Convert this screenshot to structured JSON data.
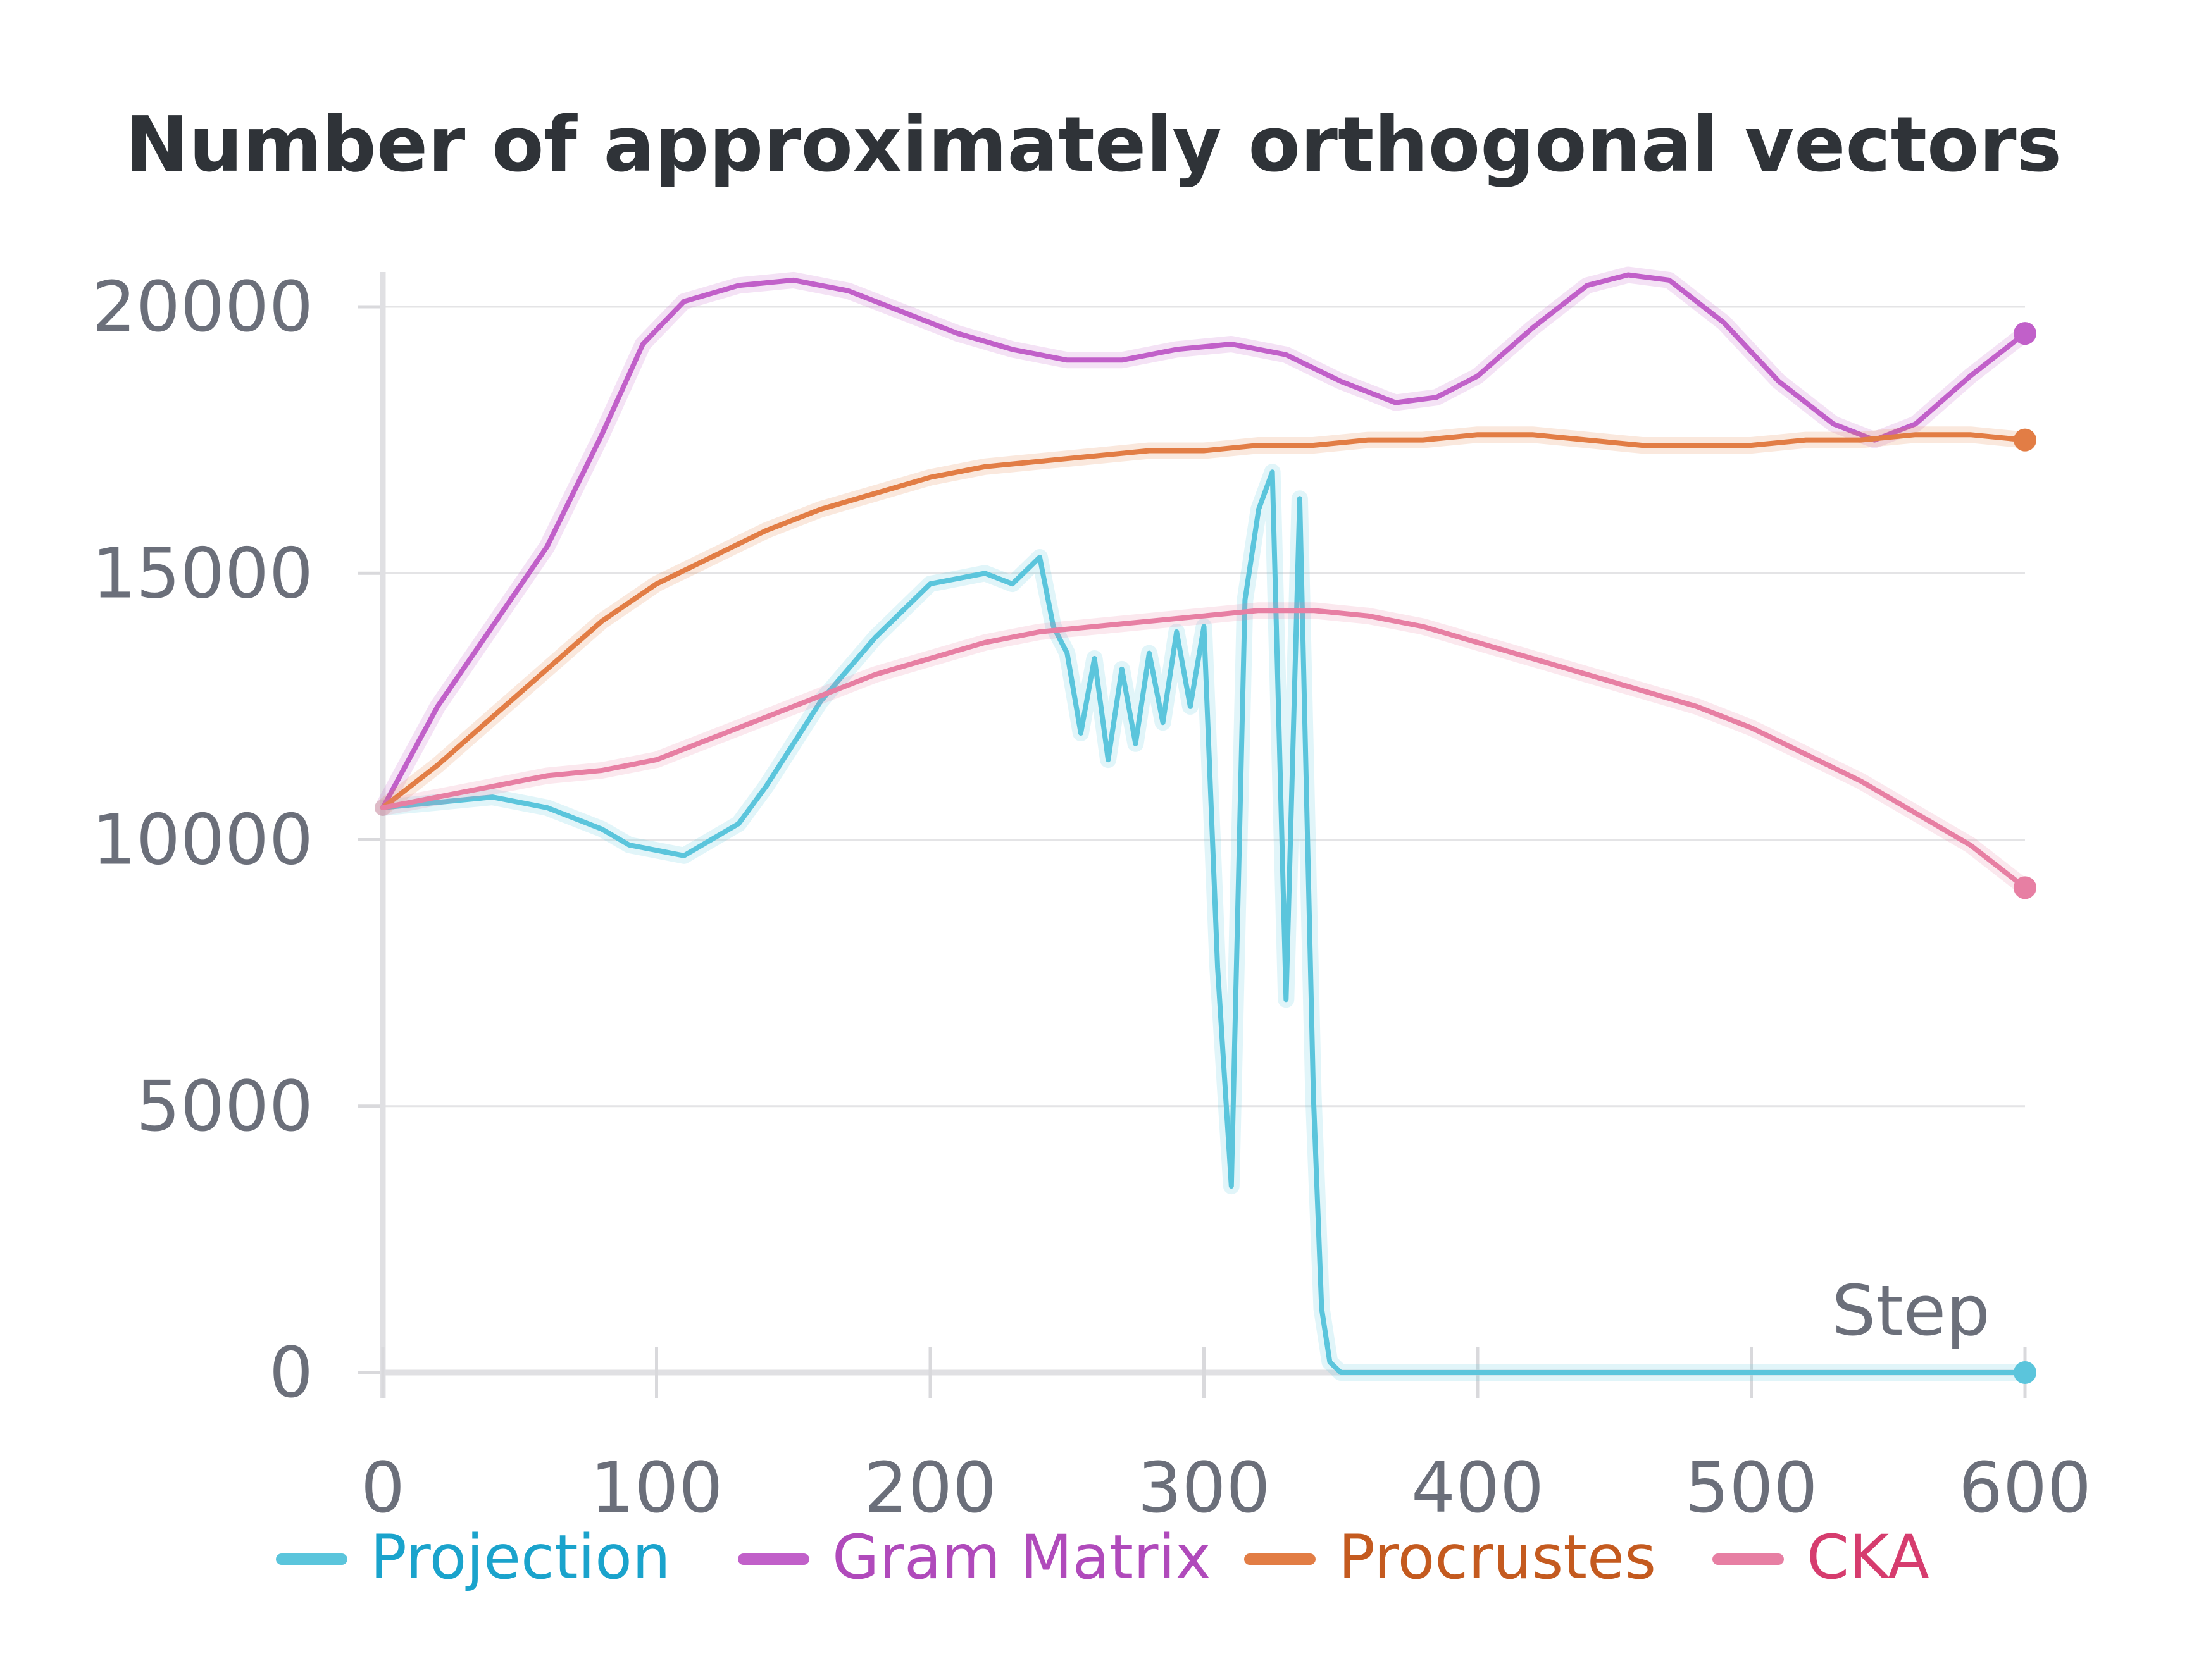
{
  "chart_data": {
    "type": "line",
    "title": "Number of approximately orthogonal vectors",
    "xlabel": "Step",
    "ylabel": "",
    "xlim": [
      0,
      600
    ],
    "ylim": [
      0,
      20000
    ],
    "x_ticks": [
      0,
      100,
      200,
      300,
      400,
      500,
      600
    ],
    "y_ticks": [
      0,
      5000,
      10000,
      15000,
      20000
    ],
    "x_tick_labels": [
      "0",
      "100",
      "200",
      "300",
      "400",
      "500",
      "600"
    ],
    "y_tick_labels": [
      "0",
      "5000",
      "10000",
      "15000",
      "20000"
    ],
    "grid": true,
    "legend_position": "bottom",
    "series": [
      {
        "name": "Projection",
        "color": "#5bc5dc",
        "label_color": "#1aa3cc",
        "x": [
          0,
          20,
          40,
          60,
          80,
          90,
          100,
          110,
          120,
          130,
          140,
          150,
          160,
          170,
          180,
          190,
          200,
          210,
          220,
          230,
          240,
          245,
          250,
          255,
          260,
          265,
          270,
          275,
          280,
          285,
          290,
          295,
          300,
          305,
          310,
          315,
          320,
          325,
          330,
          335,
          340,
          343,
          346,
          350,
          600
        ],
        "y": [
          10600,
          10700,
          10800,
          10600,
          10200,
          9900,
          9800,
          9700,
          10000,
          10300,
          11000,
          11800,
          12600,
          13200,
          13800,
          14300,
          14800,
          14900,
          15000,
          14800,
          15300,
          14000,
          13500,
          12000,
          13400,
          11500,
          13200,
          11800,
          13500,
          12200,
          13900,
          12500,
          14000,
          7600,
          3500,
          14500,
          16200,
          16900,
          7000,
          16400,
          5200,
          1200,
          200,
          0,
          0
        ]
      },
      {
        "name": "Gram Matrix",
        "color": "#c160c9",
        "label_color": "#b04abb",
        "x": [
          0,
          20,
          40,
          60,
          80,
          95,
          110,
          130,
          150,
          170,
          190,
          210,
          230,
          250,
          270,
          290,
          310,
          330,
          350,
          370,
          385,
          400,
          420,
          440,
          455,
          470,
          490,
          510,
          530,
          545,
          560,
          580,
          600
        ],
        "y": [
          10600,
          12500,
          14000,
          15500,
          17600,
          19300,
          20100,
          20400,
          20500,
          20300,
          19900,
          19500,
          19200,
          19000,
          19000,
          19200,
          19300,
          19100,
          18600,
          18200,
          18300,
          18700,
          19600,
          20400,
          20600,
          20500,
          19700,
          18600,
          17800,
          17500,
          17800,
          18700,
          19500
        ]
      },
      {
        "name": "Procrustes",
        "color": "#e27d45",
        "label_color": "#c45a1f",
        "x": [
          0,
          20,
          40,
          60,
          80,
          100,
          120,
          140,
          160,
          180,
          200,
          220,
          240,
          260,
          280,
          300,
          320,
          340,
          360,
          380,
          400,
          420,
          440,
          460,
          480,
          500,
          520,
          540,
          560,
          580,
          600
        ],
        "y": [
          10600,
          11400,
          12300,
          13200,
          14100,
          14800,
          15300,
          15800,
          16200,
          16500,
          16800,
          17000,
          17100,
          17200,
          17300,
          17300,
          17400,
          17400,
          17500,
          17500,
          17600,
          17600,
          17500,
          17400,
          17400,
          17400,
          17500,
          17500,
          17600,
          17600,
          17500
        ]
      },
      {
        "name": "CKA",
        "color": "#e77fa3",
        "label_color": "#d63c6e",
        "x": [
          0,
          20,
          40,
          60,
          80,
          100,
          120,
          140,
          160,
          180,
          200,
          220,
          240,
          260,
          280,
          300,
          320,
          340,
          360,
          380,
          400,
          420,
          440,
          460,
          480,
          500,
          520,
          540,
          560,
          580,
          600
        ],
        "y": [
          10600,
          10800,
          11000,
          11200,
          11300,
          11500,
          11900,
          12300,
          12700,
          13100,
          13400,
          13700,
          13900,
          14000,
          14100,
          14200,
          14300,
          14300,
          14200,
          14000,
          13700,
          13400,
          13100,
          12800,
          12500,
          12100,
          11600,
          11100,
          10500,
          9900,
          9100
        ]
      }
    ]
  }
}
